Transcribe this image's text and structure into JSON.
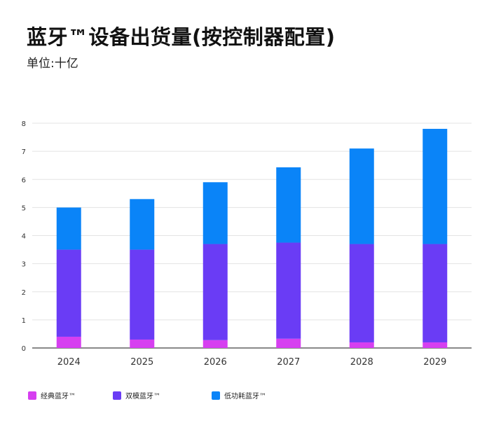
{
  "chart_data": {
    "type": "bar",
    "stacked": true,
    "title": "蓝牙™设备出货量(按控制器配置)",
    "subtitle": "单位:十亿",
    "categories": [
      "2024",
      "2025",
      "2026",
      "2027",
      "2028",
      "2029"
    ],
    "series": [
      {
        "name": "经典蓝牙™",
        "color": "#d63ff0",
        "values": [
          0.4,
          0.3,
          0.28,
          0.33,
          0.2,
          0.2
        ]
      },
      {
        "name": "双模蓝牙™",
        "color": "#6a3cf5",
        "values": [
          3.1,
          3.2,
          3.42,
          3.42,
          3.5,
          3.5
        ]
      },
      {
        "name": "低功耗蓝牙™",
        "color": "#0a84f8",
        "values": [
          1.5,
          1.8,
          2.2,
          2.68,
          3.4,
          4.1
        ]
      }
    ],
    "ylim": [
      0,
      8
    ],
    "yticks": [
      "0",
      "1",
      "2",
      "3",
      "4",
      "5",
      "6",
      "7",
      "8"
    ],
    "grid": true,
    "legend_position": "bottom-left"
  }
}
